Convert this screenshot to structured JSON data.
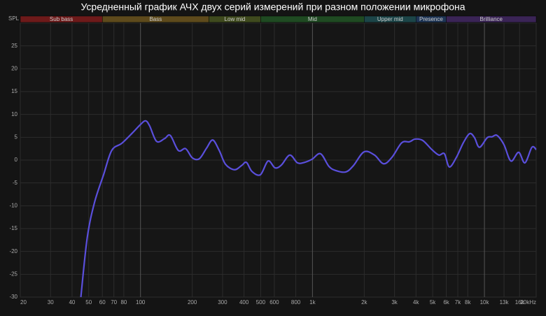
{
  "chart_data": {
    "type": "line",
    "title": "Усредненный график АЧХ двух серий измерений при разном положении микрофона",
    "y_label": "SPL",
    "log_x": true,
    "grid": true,
    "color": "#5a4fdc",
    "xlim": [
      20,
      20000
    ],
    "ylim": [
      -30,
      30
    ],
    "yticks": [
      -30,
      -25,
      -20,
      -15,
      -10,
      -5,
      0,
      5,
      10,
      15,
      20,
      25
    ],
    "xticks": [
      20,
      30,
      40,
      50,
      60,
      70,
      80,
      100,
      200,
      300,
      400,
      500,
      600,
      800,
      {
        "value": 1000,
        "label": "1k"
      },
      {
        "value": 2000,
        "label": "2k"
      },
      {
        "value": 3000,
        "label": "3k"
      },
      {
        "value": 4000,
        "label": "4k"
      },
      {
        "value": 5000,
        "label": "5k"
      },
      {
        "value": 6000,
        "label": "6k"
      },
      {
        "value": 7000,
        "label": "7k"
      },
      {
        "value": 8000,
        "label": "8k"
      },
      {
        "value": 10000,
        "label": "10k"
      },
      {
        "value": 13000,
        "label": "13k"
      },
      {
        "value": 16000,
        "label": "16k"
      },
      {
        "value": 20000,
        "label": "20kHz"
      }
    ],
    "bands": [
      {
        "name": "Sub bass",
        "from": 20,
        "to": 60,
        "color": "#6e1a1a"
      },
      {
        "name": "Bass",
        "from": 60,
        "to": 250,
        "color": "#5e4a1c"
      },
      {
        "name": "Low mid",
        "from": 250,
        "to": 500,
        "color": "#3f4a1e"
      },
      {
        "name": "Mid",
        "from": 500,
        "to": 2000,
        "color": "#1f4a22"
      },
      {
        "name": "Upper mid",
        "from": 2000,
        "to": 4000,
        "color": "#1c4548"
      },
      {
        "name": "Presence",
        "from": 4000,
        "to": 6000,
        "color": "#1e3556"
      },
      {
        "name": "Brilliance",
        "from": 6000,
        "to": 20000,
        "color": "#3a2456"
      }
    ],
    "x": [
      45,
      49,
      54,
      61,
      68,
      78,
      90,
      100,
      107,
      113,
      124,
      138,
      149,
      166,
      183,
      200,
      220,
      242,
      263,
      287,
      312,
      352,
      387,
      413,
      445,
      498,
      552,
      606,
      659,
      738,
      818,
      898,
      996,
      1114,
      1248,
      1371,
      1563,
      1731,
      1993,
      2295,
      2589,
      2897,
      3305,
      3665,
      3952,
      4378,
      4946,
      5434,
      5850,
      6251,
      6871,
      7540,
      8209,
      8757,
      9354,
      10376,
      11075,
      11832,
      12978,
      14253,
      15810,
      17192,
      18880,
      20000
    ],
    "values": [
      -30,
      -17,
      -9.3,
      -3.2,
      2.1,
      3.7,
      6.0,
      7.8,
      8.6,
      7.5,
      4.1,
      4.7,
      5.4,
      2.1,
      2.5,
      0.5,
      0.3,
      2.6,
      4.4,
      2.1,
      -0.9,
      -2.1,
      -1.2,
      -0.5,
      -2.5,
      -3.2,
      -0.2,
      -1.7,
      -1.1,
      1.1,
      -0.6,
      -0.5,
      0.2,
      1.4,
      -1.4,
      -2.3,
      -2.6,
      -1.2,
      1.8,
      1.1,
      -0.8,
      0.6,
      3.8,
      4.0,
      4.6,
      4.3,
      2.3,
      1.1,
      1.4,
      -1.5,
      0.6,
      3.8,
      5.8,
      4.9,
      2.8,
      4.9,
      5.1,
      5.4,
      3.4,
      -0.2,
      1.7,
      -0.6,
      2.8,
      2.3
    ]
  }
}
